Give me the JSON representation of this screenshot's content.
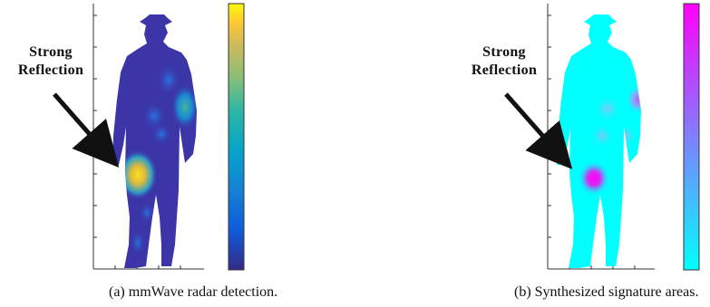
{
  "figures": [
    {
      "id": "a",
      "annotation_line1": "Strong",
      "annotation_line2": "Reflection",
      "caption": "(a)  mmWave radar detection.",
      "colormap": "parula",
      "colors": {
        "background": "#3b35a8",
        "colorbar_top": "#f9fb0e",
        "colorbar_bottom": "#352a87"
      }
    },
    {
      "id": "b",
      "annotation_line1": "Strong",
      "annotation_line2": "Reflection",
      "caption": "(b)  Synthesized signature areas.",
      "colormap": "cool",
      "colors": {
        "background": "#00ffff",
        "colorbar_top": "#ff00ff",
        "colorbar_bottom": "#00ffff"
      }
    }
  ]
}
